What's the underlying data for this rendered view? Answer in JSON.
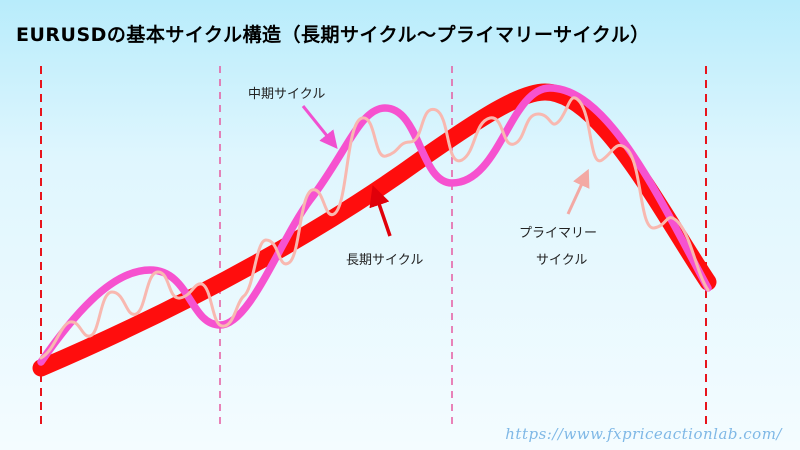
{
  "title": "EURUSDの基本サイクル構造（長期サイクル～プライマリーサイクル）",
  "labels": {
    "intermediate": "中期サイクル",
    "long_term": "長期サイクル",
    "primary_line1": "プライマリー",
    "primary_line2": "サイクル"
  },
  "watermark": "https://www.fxpriceactionlab.com/",
  "colors": {
    "long_term": "#ff0d0d",
    "intermediate": "#f652cf",
    "primary": "#f8b8b0",
    "boundary_long": "#e8141c",
    "boundary_mid": "#e65aa0"
  }
}
